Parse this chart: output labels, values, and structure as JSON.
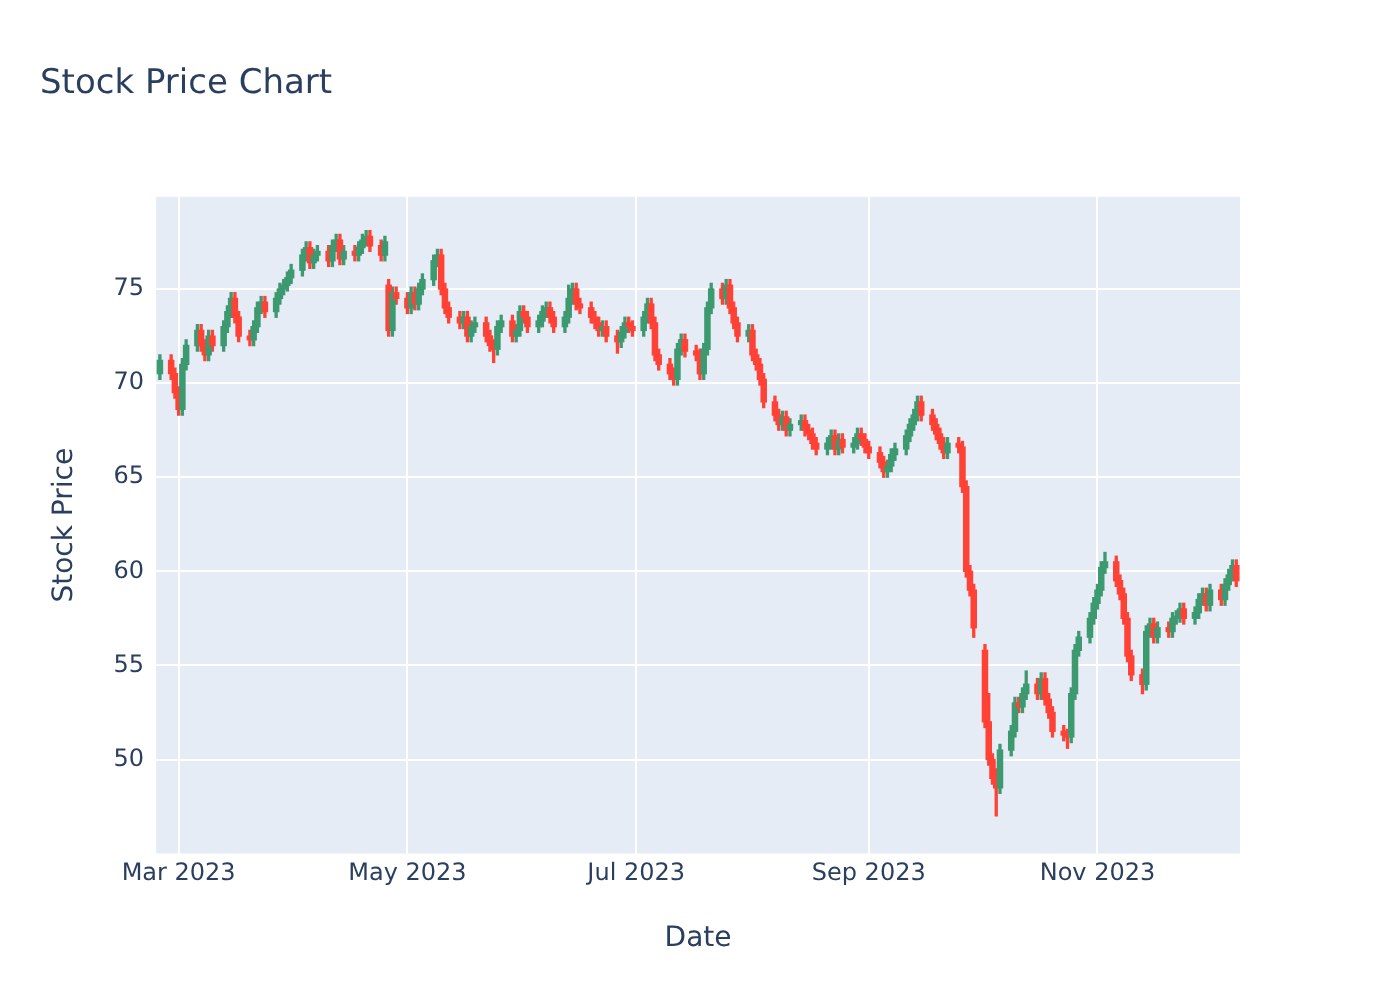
{
  "chart_data": {
    "type": "candlestick",
    "title": "Stock Price Chart",
    "xlabel": "Date",
    "ylabel": "Stock Price",
    "grid": true,
    "legend": false,
    "xlim": [
      "2023-02-23",
      "2023-12-09"
    ],
    "xticks": [
      {
        "value": "2023-03-01",
        "label": "Mar 2023"
      },
      {
        "value": "2023-05-01",
        "label": "May 2023"
      },
      {
        "value": "2023-07-01",
        "label": "Jul 2023"
      },
      {
        "value": "2023-09-01",
        "label": "Sep 2023"
      },
      {
        "value": "2023-11-01",
        "label": "Nov 2023"
      }
    ],
    "ylim": [
      45,
      79.9
    ],
    "yticks": [
      50,
      55,
      60,
      65,
      70,
      75
    ],
    "x": [
      "2023-02-24",
      "2023-02-27",
      "2023-02-28",
      "2023-03-01",
      "2023-03-02",
      "2023-03-03",
      "2023-03-06",
      "2023-03-07",
      "2023-03-08",
      "2023-03-09",
      "2023-03-10",
      "2023-03-13",
      "2023-03-14",
      "2023-03-15",
      "2023-03-16",
      "2023-03-17",
      "2023-03-20",
      "2023-03-21",
      "2023-03-22",
      "2023-03-23",
      "2023-03-24",
      "2023-03-27",
      "2023-03-28",
      "2023-03-29",
      "2023-03-30",
      "2023-03-31",
      "2023-04-03",
      "2023-04-04",
      "2023-04-05",
      "2023-04-06",
      "2023-04-07",
      "2023-04-10",
      "2023-04-11",
      "2023-04-12",
      "2023-04-13",
      "2023-04-14",
      "2023-04-17",
      "2023-04-18",
      "2023-04-19",
      "2023-04-20",
      "2023-04-21",
      "2023-04-24",
      "2023-04-25",
      "2023-04-26",
      "2023-04-27",
      "2023-04-28",
      "2023-05-01",
      "2023-05-02",
      "2023-05-03",
      "2023-05-04",
      "2023-05-05",
      "2023-05-08",
      "2023-05-09",
      "2023-05-10",
      "2023-05-11",
      "2023-05-12",
      "2023-05-15",
      "2023-05-16",
      "2023-05-17",
      "2023-05-18",
      "2023-05-19",
      "2023-05-22",
      "2023-05-23",
      "2023-05-24",
      "2023-05-25",
      "2023-05-26",
      "2023-05-29",
      "2023-05-30",
      "2023-05-31",
      "2023-06-01",
      "2023-06-02",
      "2023-06-05",
      "2023-06-06",
      "2023-06-07",
      "2023-06-08",
      "2023-06-09",
      "2023-06-12",
      "2023-06-13",
      "2023-06-14",
      "2023-06-15",
      "2023-06-16",
      "2023-06-19",
      "2023-06-20",
      "2023-06-21",
      "2023-06-22",
      "2023-06-23",
      "2023-06-26",
      "2023-06-27",
      "2023-06-28",
      "2023-06-29",
      "2023-06-30",
      "2023-07-03",
      "2023-07-04",
      "2023-07-05",
      "2023-07-06",
      "2023-07-07",
      "2023-07-10",
      "2023-07-11",
      "2023-07-12",
      "2023-07-13",
      "2023-07-14",
      "2023-07-17",
      "2023-07-18",
      "2023-07-19",
      "2023-07-20",
      "2023-07-21",
      "2023-07-24",
      "2023-07-25",
      "2023-07-26",
      "2023-07-27",
      "2023-07-28",
      "2023-07-31",
      "2023-08-01",
      "2023-08-02",
      "2023-08-03",
      "2023-08-04",
      "2023-08-07",
      "2023-08-08",
      "2023-08-09",
      "2023-08-10",
      "2023-08-11",
      "2023-08-14",
      "2023-08-15",
      "2023-08-16",
      "2023-08-17",
      "2023-08-18",
      "2023-08-21",
      "2023-08-22",
      "2023-08-23",
      "2023-08-24",
      "2023-08-25",
      "2023-08-28",
      "2023-08-29",
      "2023-08-30",
      "2023-08-31",
      "2023-09-01",
      "2023-09-04",
      "2023-09-05",
      "2023-09-06",
      "2023-09-07",
      "2023-09-08",
      "2023-09-11",
      "2023-09-12",
      "2023-09-13",
      "2023-09-14",
      "2023-09-15",
      "2023-09-18",
      "2023-09-19",
      "2023-09-20",
      "2023-09-21",
      "2023-09-22",
      "2023-09-25",
      "2023-09-26",
      "2023-09-27",
      "2023-09-28",
      "2023-09-29",
      "2023-10-02",
      "2023-10-03",
      "2023-10-04",
      "2023-10-05",
      "2023-10-06",
      "2023-10-09",
      "2023-10-10",
      "2023-10-11",
      "2023-10-12",
      "2023-10-13",
      "2023-10-16",
      "2023-10-17",
      "2023-10-18",
      "2023-10-19",
      "2023-10-20",
      "2023-10-23",
      "2023-10-24",
      "2023-10-25",
      "2023-10-26",
      "2023-10-27",
      "2023-10-30",
      "2023-10-31",
      "2023-11-01",
      "2023-11-02",
      "2023-11-03",
      "2023-11-06",
      "2023-11-07",
      "2023-11-08",
      "2023-11-09",
      "2023-11-10",
      "2023-11-13",
      "2023-11-14",
      "2023-11-15",
      "2023-11-16",
      "2023-11-17",
      "2023-11-20",
      "2023-11-21",
      "2023-11-22",
      "2023-11-23",
      "2023-11-24",
      "2023-11-27",
      "2023-11-28",
      "2023-11-29",
      "2023-11-30",
      "2023-12-01",
      "2023-12-04",
      "2023-12-05",
      "2023-12-06",
      "2023-12-07",
      "2023-12-08"
    ],
    "ohlc": [
      [
        70.5,
        71.5,
        70.2,
        71.2
      ],
      [
        71.2,
        71.5,
        70.2,
        70.5
      ],
      [
        70.5,
        70.8,
        69.2,
        69.5
      ],
      [
        69.5,
        69.8,
        68.3,
        68.6
      ],
      [
        68.6,
        71.3,
        68.3,
        71
      ],
      [
        71,
        72.3,
        70.7,
        72
      ],
      [
        72,
        73.1,
        71.7,
        72.8
      ],
      [
        72.8,
        73.1,
        71.7,
        72
      ],
      [
        72,
        72.3,
        71.2,
        71.5
      ],
      [
        71.5,
        72.8,
        71.2,
        72.5
      ],
      [
        72.5,
        72.8,
        71.7,
        72
      ],
      [
        72,
        73.3,
        71.7,
        73
      ],
      [
        73,
        74.1,
        72.7,
        73.8
      ],
      [
        73.8,
        74.8,
        73.5,
        74.5
      ],
      [
        74.5,
        74.8,
        73.2,
        73.5
      ],
      [
        73.5,
        73.8,
        72.2,
        72.5
      ],
      [
        72.5,
        72.8,
        72,
        72.3
      ],
      [
        72.3,
        73.3,
        72,
        73
      ],
      [
        73,
        74.3,
        72.7,
        74
      ],
      [
        74,
        74.6,
        73.7,
        74.3
      ],
      [
        74.3,
        74.6,
        73.5,
        73.8
      ],
      [
        73.8,
        74.8,
        73.5,
        74.5
      ],
      [
        74.5,
        75.3,
        74.2,
        75
      ],
      [
        75,
        75.5,
        74.7,
        75.2
      ],
      [
        75.2,
        75.9,
        74.9,
        75.6
      ],
      [
        75.6,
        76.3,
        75.3,
        76
      ],
      [
        76,
        77.1,
        75.7,
        76.8
      ],
      [
        76.8,
        77.5,
        76.5,
        77.2
      ],
      [
        77.2,
        77.5,
        76.1,
        76.4
      ],
      [
        76.4,
        77.1,
        76.1,
        76.8
      ],
      [
        76.8,
        77.3,
        76.5,
        77
      ],
      [
        77,
        77.3,
        76.2,
        76.5
      ],
      [
        76.5,
        77.6,
        76.2,
        77.3
      ],
      [
        77.3,
        77.9,
        77,
        77.6
      ],
      [
        77.6,
        77.9,
        76.3,
        76.6
      ],
      [
        76.6,
        77.3,
        76.3,
        77
      ],
      [
        77,
        77.3,
        76.5,
        76.8
      ],
      [
        76.8,
        77.5,
        76.5,
        77.2
      ],
      [
        77.2,
        77.9,
        76.9,
        77.6
      ],
      [
        77.6,
        78.1,
        77.3,
        77.8
      ],
      [
        77.8,
        78.1,
        77,
        77.3
      ],
      [
        77.3,
        77.6,
        76.5,
        76.8
      ],
      [
        76.8,
        77.8,
        76.5,
        77.5
      ],
      [
        75.2,
        75.5,
        72.5,
        72.8
      ],
      [
        72.8,
        75.1,
        72.5,
        74.8
      ],
      [
        74.8,
        75.1,
        74.2,
        74.5
      ],
      [
        74.5,
        74.8,
        73.7,
        74
      ],
      [
        74,
        75.1,
        73.7,
        74.8
      ],
      [
        74.8,
        75.1,
        73.9,
        74.2
      ],
      [
        74.2,
        75.3,
        73.9,
        75
      ],
      [
        75,
        75.8,
        74.7,
        75.5
      ],
      [
        75.5,
        76.8,
        75.2,
        76.5
      ],
      [
        76.5,
        77.1,
        76.2,
        76.8
      ],
      [
        76.8,
        77.1,
        74.7,
        75
      ],
      [
        75,
        75.3,
        73.7,
        74
      ],
      [
        74,
        74.3,
        73.2,
        73.5
      ],
      [
        73.5,
        73.8,
        72.9,
        73.2
      ],
      [
        73.2,
        73.8,
        72.9,
        73.5
      ],
      [
        73.5,
        73.8,
        72.2,
        72.5
      ],
      [
        72.5,
        73.3,
        72.2,
        73
      ],
      [
        73,
        73.5,
        72.7,
        73.2
      ],
      [
        73.2,
        73.5,
        72.2,
        72.5
      ],
      [
        72.5,
        72.8,
        71.7,
        72
      ],
      [
        72,
        72.3,
        71.1,
        71.8
      ],
      [
        71.8,
        73.3,
        71.5,
        73
      ],
      [
        73,
        73.6,
        72.7,
        73.3
      ],
      [
        73.3,
        73.6,
        72.2,
        72.5
      ],
      [
        72.5,
        73.1,
        72.2,
        72.8
      ],
      [
        72.8,
        74.1,
        72.5,
        73.8
      ],
      [
        73.8,
        74.1,
        73.2,
        73.5
      ],
      [
        73.5,
        73.8,
        72.7,
        73
      ],
      [
        73,
        73.6,
        72.7,
        73.3
      ],
      [
        73.3,
        74.1,
        73,
        73.8
      ],
      [
        73.8,
        74.3,
        73.5,
        74
      ],
      [
        74,
        74.3,
        73.2,
        73.5
      ],
      [
        73.5,
        73.8,
        72.7,
        73
      ],
      [
        73,
        73.8,
        72.7,
        73.5
      ],
      [
        73.5,
        75.2,
        73.2,
        74.5
      ],
      [
        74.5,
        75.3,
        74.2,
        75
      ],
      [
        75,
        75.3,
        73.9,
        74.2
      ],
      [
        74.2,
        74.5,
        73.7,
        74
      ],
      [
        74,
        74.3,
        73.2,
        73.5
      ],
      [
        73.5,
        73.8,
        72.9,
        73.2
      ],
      [
        73.2,
        73.5,
        72.5,
        72.8
      ],
      [
        72.8,
        73.3,
        72.5,
        73
      ],
      [
        73,
        73.3,
        72.2,
        72.5
      ],
      [
        72.5,
        72.8,
        71.6,
        72.2
      ],
      [
        72.2,
        73,
        71.9,
        72.7
      ],
      [
        72.7,
        73.5,
        72.4,
        73.2
      ],
      [
        73.2,
        73.5,
        72.7,
        73
      ],
      [
        73,
        73.3,
        72.5,
        72.8
      ],
      [
        72.8,
        73.8,
        72.5,
        73.5
      ],
      [
        73.5,
        74.5,
        73.2,
        74.2
      ],
      [
        74.2,
        74.5,
        72.9,
        73.2
      ],
      [
        73.2,
        73.5,
        71.2,
        71.5
      ],
      [
        71.5,
        71.8,
        70.7,
        71
      ],
      [
        71,
        71.3,
        70.2,
        70.5
      ],
      [
        70.5,
        70.8,
        69.9,
        70.2
      ],
      [
        70.2,
        72.1,
        69.9,
        71.8
      ],
      [
        71.8,
        72.6,
        71.5,
        72.3
      ],
      [
        72.3,
        72.6,
        71.4,
        71.7
      ],
      [
        71.7,
        72,
        71.2,
        71.5
      ],
      [
        71.5,
        71.8,
        70.2,
        70.5
      ],
      [
        70.5,
        72.1,
        70.2,
        71.8
      ],
      [
        71.8,
        74.3,
        71.5,
        74
      ],
      [
        74,
        75.3,
        73.7,
        75
      ],
      [
        75,
        75.3,
        74.2,
        74.5
      ],
      [
        74.5,
        75.5,
        74.2,
        75.2
      ],
      [
        75.2,
        75.5,
        73.7,
        74
      ],
      [
        74,
        74.3,
        72.9,
        73.2
      ],
      [
        73.2,
        73.5,
        72.2,
        72.5
      ],
      [
        72.5,
        73.1,
        72.2,
        72.8
      ],
      [
        72.8,
        73.1,
        71.2,
        71.5
      ],
      [
        71.5,
        71.8,
        70.7,
        71
      ],
      [
        71,
        71.3,
        69.9,
        70.2
      ],
      [
        70.2,
        70.5,
        68.7,
        69
      ],
      [
        69,
        69.3,
        68,
        68.3
      ],
      [
        68.3,
        68.6,
        67.5,
        67.8
      ],
      [
        67.8,
        68.5,
        67.5,
        68.2
      ],
      [
        68.2,
        68.5,
        67.2,
        67.5
      ],
      [
        67.5,
        68.1,
        67.2,
        67.8
      ],
      [
        67.8,
        68.3,
        67.5,
        68
      ],
      [
        68,
        68.3,
        67.2,
        67.5
      ],
      [
        67.5,
        67.8,
        67,
        67.3
      ],
      [
        67.3,
        67.6,
        66.5,
        66.8
      ],
      [
        66.8,
        67.1,
        66.2,
        66.5
      ],
      [
        66.5,
        67.1,
        66.2,
        66.8
      ],
      [
        66.8,
        67.5,
        66.5,
        67.2
      ],
      [
        67.2,
        67.5,
        66.2,
        66.5
      ],
      [
        66.5,
        67.3,
        66.2,
        67
      ],
      [
        67,
        67.3,
        66.3,
        66.6
      ],
      [
        66.6,
        67.1,
        66.3,
        66.8
      ],
      [
        66.8,
        67.6,
        66.5,
        67.3
      ],
      [
        67.3,
        67.6,
        66.7,
        67
      ],
      [
        67,
        67.3,
        66.3,
        66.6
      ],
      [
        66.6,
        66.9,
        66,
        66.3
      ],
      [
        66.3,
        66.6,
        65.5,
        65.8
      ],
      [
        65.8,
        66.1,
        65,
        65.3
      ],
      [
        65.3,
        65.9,
        65,
        65.6
      ],
      [
        65.6,
        66.5,
        65.3,
        66.2
      ],
      [
        66.2,
        66.8,
        65.9,
        66.5
      ],
      [
        66.5,
        67.5,
        66.2,
        67.2
      ],
      [
        67.2,
        68.1,
        66.9,
        67.8
      ],
      [
        67.8,
        68.6,
        67.5,
        68.3
      ],
      [
        68.3,
        69.3,
        68,
        69
      ],
      [
        69,
        69.3,
        68,
        68.3
      ],
      [
        68.3,
        68.6,
        67.5,
        67.8
      ],
      [
        67.8,
        68.1,
        67,
        67.3
      ],
      [
        67.3,
        67.6,
        66.5,
        66.8
      ],
      [
        66.8,
        67.1,
        66,
        66.3
      ],
      [
        66.3,
        67.1,
        66,
        66.8
      ],
      [
        66.8,
        67.1,
        66.3,
        66.6
      ],
      [
        66.6,
        66.9,
        64.2,
        64.5
      ],
      [
        64.5,
        64.8,
        59.7,
        60
      ],
      [
        60,
        60.3,
        58.7,
        59
      ],
      [
        59,
        59.3,
        56.5,
        57
      ],
      [
        55.8,
        56.1,
        51.7,
        52
      ],
      [
        52,
        53.5,
        49.7,
        50
      ],
      [
        50,
        50.3,
        48.7,
        49
      ],
      [
        49,
        49.5,
        47,
        48.5
      ],
      [
        48.5,
        50.8,
        48.2,
        50.5
      ],
      [
        50.5,
        51.8,
        50.2,
        51.5
      ],
      [
        51.5,
        53.3,
        51.2,
        53
      ],
      [
        53,
        53.3,
        52.5,
        52.8
      ],
      [
        52.8,
        53.8,
        52.5,
        53.5
      ],
      [
        53.5,
        54.7,
        53.2,
        54
      ],
      [
        54,
        54.3,
        53.2,
        53.5
      ],
      [
        53.5,
        54.6,
        53.2,
        54.3
      ],
      [
        54.3,
        54.6,
        52.9,
        53.2
      ],
      [
        53.2,
        53.5,
        52.2,
        52.5
      ],
      [
        52.5,
        52.8,
        51.2,
        51.5
      ],
      [
        51.5,
        51.8,
        51,
        51.3
      ],
      [
        51.3,
        51.6,
        50.6,
        51.2
      ],
      [
        51.2,
        53.8,
        50.9,
        53.5
      ],
      [
        53.5,
        56.1,
        53.2,
        55.8
      ],
      [
        55.8,
        56.8,
        55.5,
        56.5
      ],
      [
        56.5,
        57.8,
        56.2,
        57.5
      ],
      [
        57.5,
        58.6,
        57.2,
        58.3
      ],
      [
        58.3,
        59.3,
        58,
        59
      ],
      [
        59,
        60.5,
        58.7,
        60.2
      ],
      [
        60.2,
        61,
        59.9,
        60.5
      ],
      [
        60.5,
        60.8,
        59.2,
        59.5
      ],
      [
        59.5,
        59.8,
        58.5,
        58.8
      ],
      [
        58.8,
        59.1,
        57.2,
        57.5
      ],
      [
        57.5,
        57.8,
        55.2,
        55.5
      ],
      [
        55.5,
        55.8,
        54.2,
        54.5
      ],
      [
        54.5,
        54.8,
        53.5,
        54
      ],
      [
        54,
        57.1,
        53.7,
        56.8
      ],
      [
        56.8,
        57.5,
        56.5,
        57.2
      ],
      [
        57.2,
        57.5,
        56.2,
        56.5
      ],
      [
        56.5,
        57.3,
        56.2,
        57
      ],
      [
        57,
        57.3,
        56.5,
        56.8
      ],
      [
        56.8,
        57.8,
        56.5,
        57.5
      ],
      [
        57.5,
        57.9,
        57.2,
        57.6
      ],
      [
        57.6,
        58.3,
        57.3,
        58
      ],
      [
        58,
        58.3,
        57.2,
        57.5
      ],
      [
        57.5,
        58.1,
        57.2,
        57.8
      ],
      [
        57.8,
        58.8,
        57.5,
        58.5
      ],
      [
        58.5,
        59.1,
        58.2,
        58.8
      ],
      [
        58.8,
        59.1,
        57.9,
        58.2
      ],
      [
        58.2,
        59.3,
        57.9,
        59
      ],
      [
        59,
        59.3,
        58.2,
        58.5
      ],
      [
        58.5,
        59.6,
        58.2,
        59.3
      ],
      [
        59.3,
        60.1,
        59,
        59.8
      ],
      [
        59.8,
        60.6,
        59.5,
        60.3
      ],
      [
        60.3,
        60.6,
        59.2,
        59.5
      ]
    ]
  }
}
